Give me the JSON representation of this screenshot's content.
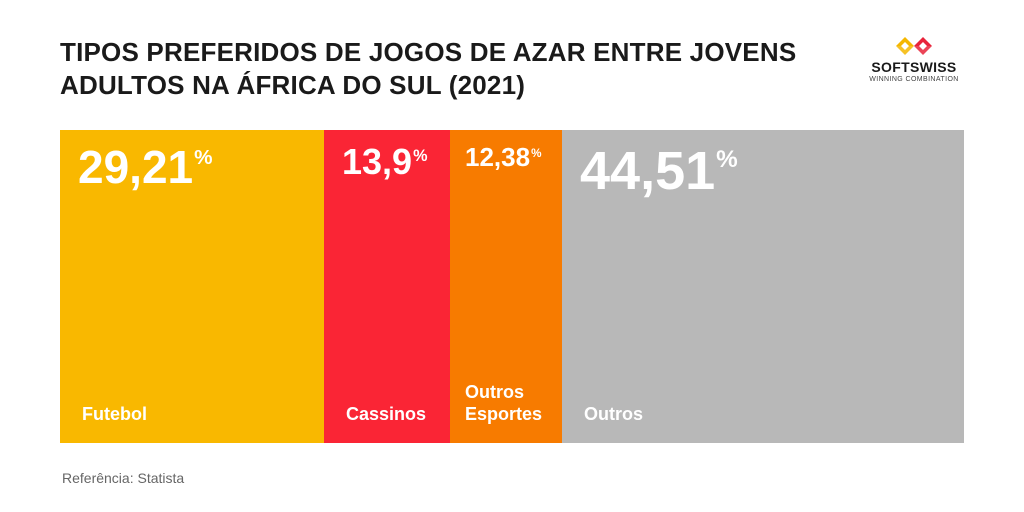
{
  "header": {
    "title": "TIPOS PREFERIDOS DE JOGOS DE AZAR ENTRE JOVENS ADULTOS NA ÁFRICA DO SUL (2021)"
  },
  "logo": {
    "name": "SOFTSWISS",
    "tagline": "WINNING COMBINATION",
    "colors": {
      "yellow": "#F5B700",
      "red": "#E8233A"
    }
  },
  "chart_data": {
    "type": "treemap",
    "title": "TIPOS PREFERIDOS DE JOGOS DE AZAR ENTRE JOVENS ADULTOS NA ÁFRICA DO SUL (2021)",
    "unit": "%",
    "segments": [
      {
        "label": "Futebol",
        "value": 29.21,
        "value_text": "29,21",
        "color": "#F9B800"
      },
      {
        "label": "Cassinos",
        "value": 13.9,
        "value_text": "13,9",
        "color": "#FA2535"
      },
      {
        "label": "Outros\nEsportes",
        "value": 12.38,
        "value_text": "12,38",
        "color": "#F77B00"
      },
      {
        "label": "Outros",
        "value": 44.51,
        "value_text": "44,51",
        "color": "#B8B8B8"
      }
    ]
  },
  "footer": {
    "source": "Referência: Statista"
  }
}
